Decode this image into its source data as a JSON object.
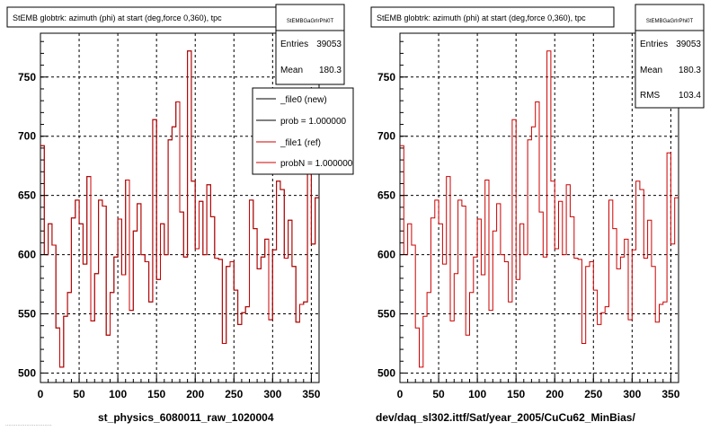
{
  "panels": [
    {
      "title": "StEMB globtrk: azimuth (phi) at start (deg,force 0,360), tpc",
      "stats": {
        "name": "StEMBGaGrlrPhi0T",
        "rows": [
          {
            "label": "Entries",
            "value": "39053"
          },
          {
            "label": "Mean",
            "value": "180.3"
          }
        ]
      },
      "legend": [
        {
          "label": "_file0 (new)",
          "color": "#000000"
        },
        {
          "label": "prob = 1.000000",
          "color": "#000000"
        },
        {
          "label": "_file1 (ref)",
          "color": "#cc0000"
        },
        {
          "label": "probN = 1.000000",
          "color": "#cc0000"
        }
      ],
      "xlabel": "st_physics_6080011_raw_1020004"
    },
    {
      "title": "StEMB globtrk: azimuth (phi) at start (deg,force 0,360), tpc",
      "stats": {
        "name": "StEMBGaGrlrPhi0T",
        "rows": [
          {
            "label": "Entries",
            "value": "39053"
          },
          {
            "label": "Mean",
            "value": "180.3"
          },
          {
            "label": "RMS",
            "value": "103.4"
          }
        ]
      },
      "legend": [],
      "xlabel": "dev/daq_sl302.ittf/Sat/year_2005/CuCu62_MinBias/"
    }
  ],
  "footer_text": "...............................",
  "chart_data": {
    "type": "line",
    "title": "StEMB globtrk: azimuth (phi) at start (deg,force 0,360), tpc",
    "xlim": [
      0,
      360
    ],
    "ylim": [
      492,
      787
    ],
    "xticks": [
      0,
      50,
      100,
      150,
      200,
      250,
      300,
      350
    ],
    "yticks": [
      500,
      550,
      600,
      650,
      700,
      750
    ],
    "grid": true,
    "bin_width": 5,
    "x": [
      0,
      5,
      10,
      15,
      20,
      25,
      30,
      35,
      40,
      45,
      50,
      55,
      60,
      65,
      70,
      75,
      80,
      85,
      90,
      95,
      100,
      105,
      110,
      115,
      120,
      125,
      130,
      135,
      140,
      145,
      150,
      155,
      160,
      165,
      170,
      175,
      180,
      185,
      190,
      195,
      200,
      205,
      210,
      215,
      220,
      225,
      230,
      235,
      240,
      245,
      250,
      255,
      260,
      265,
      270,
      275,
      280,
      285,
      290,
      295,
      300,
      305,
      310,
      315,
      320,
      325,
      330,
      335,
      340,
      345,
      350,
      355
    ],
    "series": [
      {
        "name": "_file0 (new)",
        "color": "#000000",
        "values": [
          692,
          600,
          626,
          608,
          538,
          505,
          548,
          568,
          631,
          646,
          626,
          592,
          666,
          544,
          584,
          646,
          641,
          532,
          568,
          598,
          630,
          583,
          663,
          553,
          620,
          643,
          600,
          594,
          560,
          714,
          579,
          626,
          600,
          697,
          708,
          729,
          636,
          598,
          772,
          662,
          605,
          645,
          600,
          659,
          632,
          597,
          596,
          525,
          590,
          594,
          570,
          541,
          551,
          556,
          646,
          622,
          588,
          598,
          613,
          545,
          604,
          662,
          655,
          597,
          629,
          590,
          543,
          558,
          560,
          686,
          609,
          648
        ]
      },
      {
        "name": "_file1 (ref)",
        "color": "#cc0000",
        "values": [
          692,
          600,
          626,
          608,
          538,
          505,
          548,
          568,
          631,
          646,
          626,
          592,
          666,
          544,
          584,
          646,
          641,
          532,
          568,
          598,
          630,
          583,
          663,
          553,
          620,
          643,
          600,
          594,
          560,
          714,
          579,
          626,
          600,
          697,
          708,
          729,
          636,
          598,
          772,
          662,
          605,
          645,
          600,
          659,
          632,
          597,
          596,
          525,
          590,
          594,
          570,
          541,
          551,
          556,
          646,
          622,
          588,
          598,
          613,
          545,
          604,
          662,
          655,
          597,
          629,
          590,
          543,
          558,
          560,
          686,
          609,
          648
        ]
      }
    ]
  }
}
